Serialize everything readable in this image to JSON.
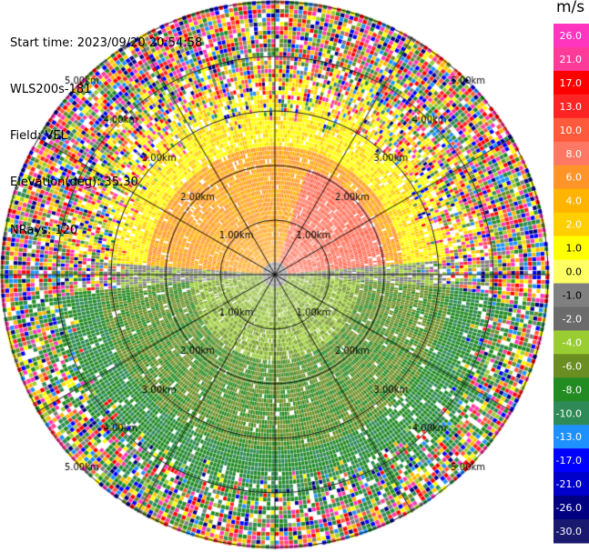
{
  "header": {
    "start_time": "Start time: 2023/09/20 20:54:58",
    "instrument": "WLS200s-181",
    "field": "Field: VEL",
    "elevation": "Elevation(deg): 35.30",
    "nrays": "NRays: 120"
  },
  "colorbar": {
    "unit": "m/s",
    "ticks": [
      "26.0",
      "21.0",
      "17.0",
      "13.0",
      "10.0",
      "8.0",
      "6.0",
      "4.0",
      "2.0",
      "1.0",
      "0.0",
      "-1.0",
      "-2.0",
      "-4.0",
      "-6.0",
      "-8.0",
      "-10.0",
      "-13.0",
      "-17.0",
      "-21.0",
      "-26.0",
      "-30.0"
    ],
    "colors": [
      "#ff35c0",
      "#ff3b9a",
      "#ff0000",
      "#ff2424",
      "#ff5a3c",
      "#ff7864",
      "#ff9428",
      "#ffb400",
      "#ffcf00",
      "#ffff00",
      "#ffff64",
      "#808080",
      "#6b6b6b",
      "#9acd32",
      "#6b8e23",
      "#228b22",
      "#2e8b57",
      "#1e90ff",
      "#0000ff",
      "#0000cd",
      "#000080",
      "#191970"
    ]
  },
  "chart_data": {
    "type": "polar-ppi",
    "field": "VEL",
    "units": "m/s",
    "n_rays": 120,
    "value_range": [
      -30.0,
      26.0
    ],
    "range_ring_labels": [
      "1.00km",
      "2.00km",
      "3.00km",
      "4.00km",
      "5.00km"
    ],
    "range_rings_km": [
      1,
      2,
      3,
      4,
      5
    ],
    "spoke_angles_deg": [
      0,
      30,
      60,
      90,
      120,
      150
    ],
    "regions": [
      {
        "sector": "north-east near range",
        "value_m_s": 10.0
      },
      {
        "sector": "north near range",
        "value_m_s": 6.0
      },
      {
        "sector": "north middle range",
        "value_m_s": 2.0
      },
      {
        "sector": "south near range",
        "value_m_s": -2.0
      },
      {
        "sector": "south middle range",
        "value_m_s": -6.0
      },
      {
        "sector": "east/west near range",
        "value_m_s": 0.0
      },
      {
        "sector": "outer range (noise)",
        "value_m_s": null
      }
    ]
  }
}
